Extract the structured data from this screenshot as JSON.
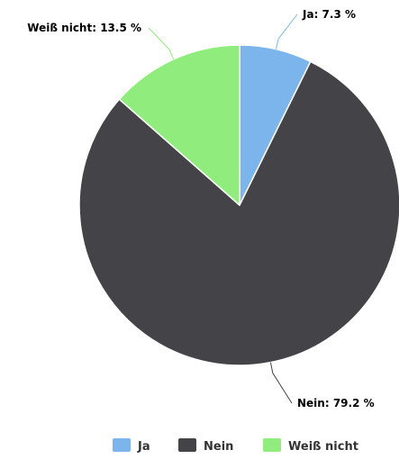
{
  "chart_data": {
    "type": "pie",
    "legend_placement": "bottom-right",
    "slices": [
      {
        "label": "Ja",
        "value": 7.3,
        "display": "Ja: 7.3 %",
        "color": "#7cb5ec"
      },
      {
        "label": "Nein",
        "value": 79.2,
        "display": "Nein: 79.2 %",
        "color": "#434348"
      },
      {
        "label": "Weiß nicht",
        "value": 13.5,
        "display": "Weiß nicht: 13.5 %",
        "color": "#90ed7d"
      }
    ]
  }
}
